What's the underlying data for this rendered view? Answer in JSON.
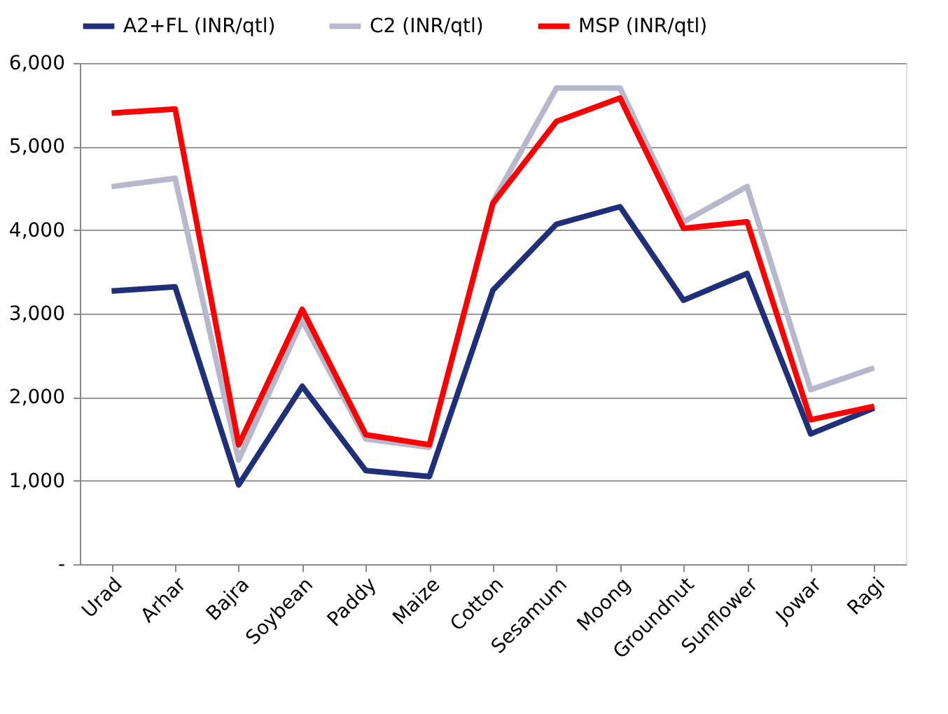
{
  "chart_data": {
    "type": "line",
    "categories": [
      "Urad",
      "Arhar",
      "Bajra",
      "Soybean",
      "Paddy",
      "Maize",
      "Cotton",
      "Sesamum",
      "Moong",
      "Groundnut",
      "Sunflower",
      "Jowar",
      "Ragi"
    ],
    "series": [
      {
        "name": "A2+FL (INR/qtl)",
        "color": "#1f2f7a",
        "values": [
          3270,
          3320,
          950,
          2130,
          1120,
          1050,
          3280,
          4070,
          4280,
          3160,
          3480,
          1560,
          1870
        ]
      },
      {
        "name": "C2 (INR/qtl)",
        "color": "#b8b8cc",
        "values": [
          4520,
          4620,
          1250,
          2920,
          1500,
          1400,
          4340,
          5700,
          5700,
          4100,
          4520,
          2090,
          2350
        ]
      },
      {
        "name": "MSP (INR/qtl)",
        "color": "#ff0000",
        "values": [
          5400,
          5450,
          1430,
          3050,
          1550,
          1430,
          4320,
          5300,
          5580,
          4020,
          4100,
          1730,
          1890
        ]
      }
    ],
    "ylim": [
      0,
      6000
    ],
    "yticks": [
      {
        "value": 0,
        "label": "-"
      },
      {
        "value": 1000,
        "label": "1,000"
      },
      {
        "value": 2000,
        "label": "2,000"
      },
      {
        "value": 3000,
        "label": "3,000"
      },
      {
        "value": 4000,
        "label": "4,000"
      },
      {
        "value": 5000,
        "label": "5,000"
      },
      {
        "value": 6000,
        "label": "6,000"
      }
    ],
    "grid": "y",
    "legend": "top",
    "marker": "none",
    "line_style": "solid"
  }
}
